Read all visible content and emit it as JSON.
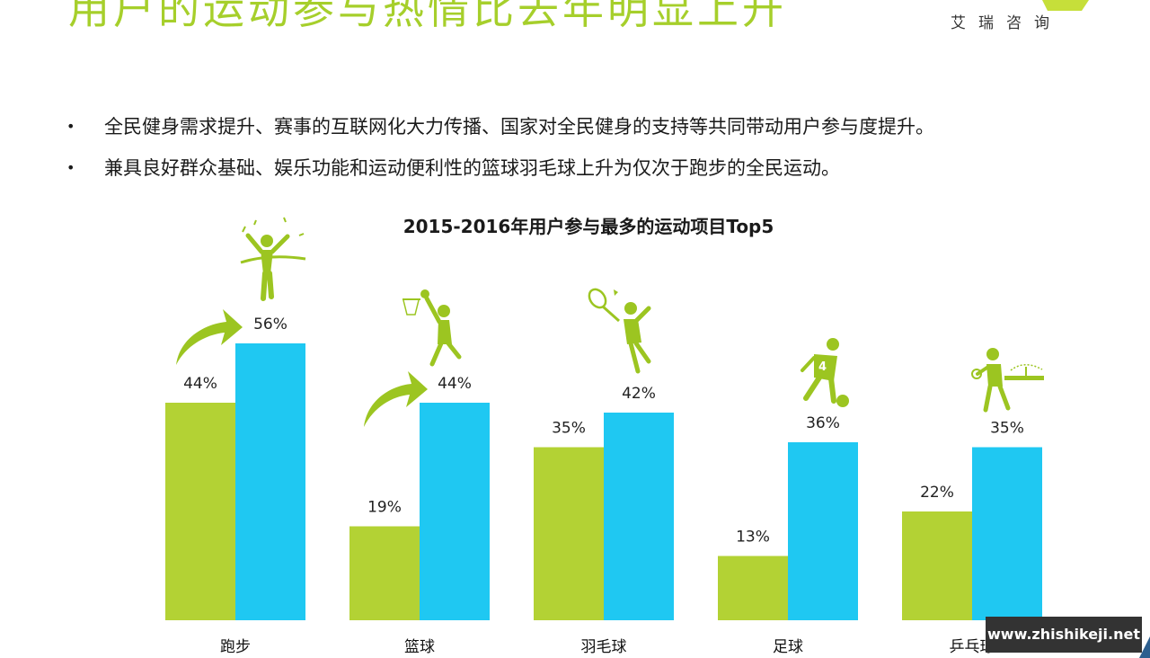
{
  "header": {
    "headline": "用户的运动参与热情比去年明显上升",
    "brand": "艾瑞咨询"
  },
  "bullets": [
    "全民健身需求提升、赛事的互联网化大力传播、国家对全民健身的支持等共同带动用户参与度提升。",
    "兼具良好群众基础、娱乐功能和运动便利性的篮球羽毛球上升为仅次于跑步的全民运动。"
  ],
  "colors": {
    "series_2015": "#b3d234",
    "series_2016": "#1fc8f2",
    "accent_green": "#a6cf2b",
    "icon_green": "#9cc521"
  },
  "icons": [
    "runner-icon",
    "basketball-player-icon",
    "badminton-player-icon",
    "soccer-player-icon",
    "table-tennis-player-icon",
    "up-arrow-icon"
  ],
  "chart_data": {
    "type": "bar",
    "title": "2015-2016年用户参与最多的运动项目Top5",
    "categories": [
      "跑步",
      "篮球",
      "羽毛球",
      "足球",
      "乒乓球"
    ],
    "series": [
      {
        "values": [
          44,
          19,
          35,
          13,
          22
        ],
        "labels": [
          "44%",
          "19%",
          "35%",
          "13%",
          "22%"
        ]
      },
      {
        "values": [
          56,
          44,
          42,
          36,
          35
        ],
        "labels": [
          "56%",
          "44%",
          "42%",
          "36%",
          "35%"
        ]
      }
    ],
    "unit": "%",
    "ylim": [
      0,
      56
    ],
    "grid": false
  },
  "watermark": "www.zhishikeji.net"
}
